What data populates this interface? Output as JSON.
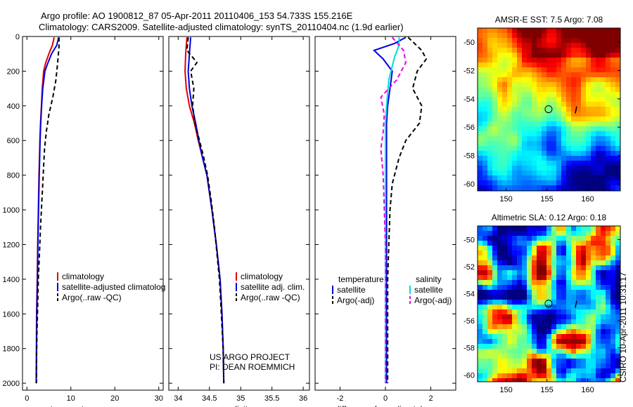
{
  "header": {
    "line1": "Argo profile: AO 1900812_87 05-Apr-2011 20110406_153 54.733S 155.216E",
    "line2": "Climatology: CARS2009. Satellite-adjusted climatology: synTS_20110404.nc (1.9d earlier)"
  },
  "side_text": "CSIRO 10-Apr-2011 10:31:17",
  "colors": {
    "climatology": "#e00000",
    "satellite": "#0000dd",
    "argo": "#000000",
    "sal_satellite": "#00dddd",
    "sal_argo": "#ee00ee"
  },
  "chart_data": [
    {
      "id": "temperature",
      "type": "line",
      "xlabel": "temperature",
      "ylabel": "",
      "xlim": [
        -1,
        31
      ],
      "ylim": [
        0,
        2040
      ],
      "xticks": [
        0,
        10,
        20,
        30
      ],
      "yticks": [
        0,
        200,
        400,
        600,
        800,
        1000,
        1200,
        1400,
        1600,
        1800,
        2000
      ],
      "legend": [
        "climatology",
        "satellite-adjusted climatolog",
        "Argo(..raw -QC)"
      ],
      "series": [
        {
          "name": "climatology",
          "color": "#e00000",
          "dash": false,
          "x": [
            6.2,
            5.8,
            5.0,
            4.3,
            3.8,
            3.5,
            3.3,
            3.1,
            2.95,
            2.85,
            2.75,
            2.6,
            2.45,
            2.35,
            2.2,
            2.15,
            2.1
          ],
          "y": [
            5,
            50,
            100,
            150,
            200,
            300,
            400,
            500,
            600,
            700,
            800,
            1000,
            1200,
            1400,
            1600,
            1800,
            2000
          ]
        },
        {
          "name": "satellite-adjusted climatolog",
          "color": "#0000dd",
          "dash": false,
          "x": [
            7.2,
            6.8,
            5.6,
            4.8,
            4.1,
            3.6,
            3.35,
            3.15,
            3.0,
            2.9,
            2.8,
            2.65,
            2.5,
            2.4,
            2.25,
            2.2,
            2.15
          ],
          "y": [
            5,
            50,
            100,
            150,
            200,
            300,
            400,
            500,
            600,
            700,
            800,
            1000,
            1200,
            1400,
            1600,
            1800,
            2000
          ]
        },
        {
          "name": "Argo(..raw -QC)",
          "color": "#000000",
          "dash": true,
          "x": [
            7.3,
            7.3,
            7.0,
            6.6,
            5.9,
            5.0,
            4.4,
            4.0,
            3.8,
            3.6,
            3.4,
            3.1,
            2.85,
            2.6,
            2.45,
            2.3,
            2.2,
            2.15
          ],
          "y": [
            5,
            60,
            150,
            250,
            350,
            450,
            550,
            650,
            750,
            850,
            950,
            1100,
            1250,
            1400,
            1550,
            1700,
            1850,
            2000
          ]
        }
      ]
    },
    {
      "id": "salinity",
      "type": "line",
      "xlabel": "salinity",
      "ylabel": "",
      "xlim": [
        33.85,
        36.1
      ],
      "ylim": [
        0,
        2040
      ],
      "xticks": [
        34,
        34.5,
        35,
        35.5,
        36
      ],
      "yticks": [
        0,
        200,
        400,
        600,
        800,
        1000,
        1200,
        1400,
        1600,
        1800,
        2000
      ],
      "legend": [
        "climatology",
        "satellite adj. clim.",
        "Argo(..raw -QC)"
      ],
      "annotation": [
        "US ARGO PROJECT",
        "PI: DEAN ROEMMICH"
      ],
      "series": [
        {
          "name": "climatology",
          "color": "#e00000",
          "dash": false,
          "x": [
            34.14,
            34.12,
            34.11,
            34.13,
            34.18,
            34.26,
            34.32,
            34.39,
            34.46,
            34.54,
            34.61,
            34.67,
            34.7,
            34.72,
            34.73
          ],
          "y": [
            5,
            100,
            200,
            300,
            400,
            500,
            600,
            700,
            800,
            1000,
            1200,
            1400,
            1600,
            1800,
            2000
          ]
        },
        {
          "name": "satellite adj. clim.",
          "color": "#0000dd",
          "dash": false,
          "x": [
            34.2,
            34.18,
            34.16,
            34.18,
            34.22,
            34.28,
            34.33,
            34.39,
            34.46,
            34.54,
            34.61,
            34.67,
            34.7,
            34.72,
            34.73
          ],
          "y": [
            5,
            100,
            200,
            300,
            400,
            500,
            600,
            700,
            800,
            1000,
            1200,
            1400,
            1600,
            1800,
            2000
          ]
        },
        {
          "name": "Argo(..raw -QC)",
          "color": "#000000",
          "dash": true,
          "x": [
            34.16,
            34.14,
            34.3,
            34.2,
            34.25,
            34.23,
            34.27,
            34.34,
            34.41,
            34.47,
            34.53,
            34.58,
            34.62,
            34.66,
            34.69,
            34.72,
            34.73
          ],
          "y": [
            5,
            80,
            150,
            200,
            300,
            400,
            500,
            600,
            700,
            800,
            950,
            1100,
            1250,
            1400,
            1600,
            1800,
            2000
          ]
        }
      ]
    },
    {
      "id": "difference",
      "type": "line",
      "xlabel": "difference from climatology",
      "ylabel": "",
      "xlim": [
        -3.1,
        3.1
      ],
      "ylim": [
        0,
        2040
      ],
      "xticks": [
        -2,
        0,
        2
      ],
      "yticks": [
        0,
        200,
        400,
        600,
        800,
        1000,
        1200,
        1400,
        1600,
        1800,
        2000
      ],
      "legend_groups": [
        {
          "title": "temperature",
          "items": [
            "satellite",
            "Argo(-adj)"
          ]
        },
        {
          "title": "salinity",
          "items": [
            "satellite",
            "Argo(-adj)"
          ]
        }
      ],
      "series": [
        {
          "name": "satellite",
          "group": "temperature",
          "color": "#0000dd",
          "dash": false,
          "x": [
            0.9,
            0.4,
            -0.5,
            -0.1,
            0.3,
            0.2,
            0.1,
            0.05,
            0.05,
            0.05,
            0.05,
            0.05,
            0.05,
            0.05,
            0.05
          ],
          "y": [
            5,
            40,
            80,
            130,
            200,
            300,
            400,
            500,
            600,
            800,
            1000,
            1200,
            1400,
            1700,
            2000
          ]
        },
        {
          "name": "Argo(-adj)",
          "group": "temperature",
          "color": "#000000",
          "dash": true,
          "x": [
            1.0,
            1.6,
            1.8,
            1.4,
            1.2,
            1.6,
            1.5,
            0.9,
            0.6,
            0.3,
            0.2,
            0.15,
            0.1,
            0.1,
            0.1,
            0.1
          ],
          "y": [
            5,
            80,
            130,
            200,
            300,
            400,
            500,
            600,
            700,
            850,
            1000,
            1200,
            1400,
            1600,
            1800,
            2000
          ]
        },
        {
          "name": "satellite",
          "group": "salinity",
          "color": "#00dddd",
          "dash": false,
          "x": [
            0.6,
            0.6,
            0.4,
            0.15,
            0.05,
            0.0,
            0.0,
            0.0,
            0.0,
            0.0,
            0.0,
            0.0,
            0.0
          ],
          "y": [
            5,
            50,
            120,
            250,
            400,
            500,
            600,
            800,
            1000,
            1200,
            1500,
            1800,
            2000
          ]
        },
        {
          "name": "Argo(-adj)",
          "group": "salinity",
          "color": "#ee00ee",
          "dash": true,
          "x": [
            0.3,
            0.8,
            0.9,
            0.5,
            -0.2,
            -0.05,
            -0.1,
            -0.2,
            -0.1,
            -0.05,
            0.0,
            0.0,
            0.0,
            0.0
          ],
          "y": [
            5,
            80,
            150,
            250,
            350,
            450,
            550,
            650,
            800,
            1000,
            1200,
            1400,
            1700,
            2000
          ]
        }
      ]
    },
    {
      "id": "sst_map",
      "type": "heatmap",
      "title": "AMSR-E SST: 7.5 Argo: 7.08",
      "xlim": [
        146.5,
        164
      ],
      "ylim": [
        -60.5,
        -49
      ],
      "xticks": [
        150,
        155,
        160
      ],
      "yticks": [
        -50,
        -52,
        -54,
        -56,
        -58,
        -60
      ],
      "marker": {
        "x": 155.2,
        "y": -54.73
      }
    },
    {
      "id": "sla_map",
      "type": "heatmap",
      "title": "Altimetric SLA: 0.12 Argo: 0.18",
      "xlim": [
        146.5,
        164
      ],
      "ylim": [
        -60.5,
        -49
      ],
      "xticks": [
        150,
        155,
        160
      ],
      "yticks": [
        -50,
        -52,
        -54,
        -56,
        -58,
        -60
      ],
      "marker": {
        "x": 155.2,
        "y": -54.73
      }
    }
  ]
}
